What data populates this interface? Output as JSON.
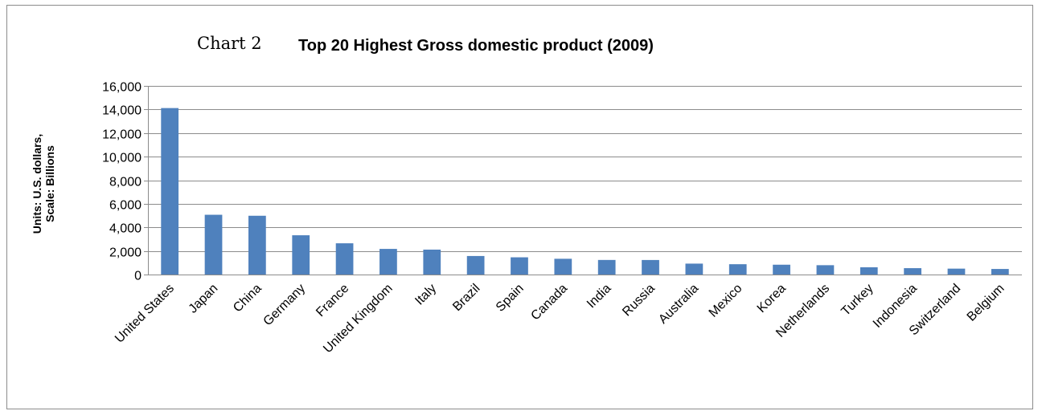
{
  "chart_data": {
    "type": "bar",
    "title_prefix": "Chart 2",
    "title": "Top 20 Highest Gross domestic product (2009)",
    "ylabel_lines": [
      "Units: U.S. dollars,",
      "Scale: Billions"
    ],
    "xlabel": "",
    "ylim": [
      0,
      16000
    ],
    "yticks": [
      0,
      2000,
      4000,
      6000,
      8000,
      10000,
      12000,
      14000,
      16000
    ],
    "ytick_labels": [
      "0",
      "2,000",
      "4,000",
      "6,000",
      "8,000",
      "10,000",
      "12,000",
      "14,000",
      "16,000"
    ],
    "grid": true,
    "legend": "none",
    "categories": [
      "United States",
      "Japan",
      "China",
      "Germany",
      "France",
      "United Kingdom",
      "Italy",
      "Brazil",
      "Spain",
      "Canada",
      "India",
      "Russia",
      "Australia",
      "Mexico",
      "Korea",
      "Netherlands",
      "Turkey",
      "Indonesia",
      "Switzerland",
      "Belgium"
    ],
    "values": [
      14119,
      5069,
      4985,
      3330,
      2649,
      2174,
      2113,
      1572,
      1460,
      1336,
      1236,
      1232,
      925,
      875,
      833,
      792,
      615,
      540,
      500,
      471
    ],
    "bar_color": "#4f81bd"
  }
}
